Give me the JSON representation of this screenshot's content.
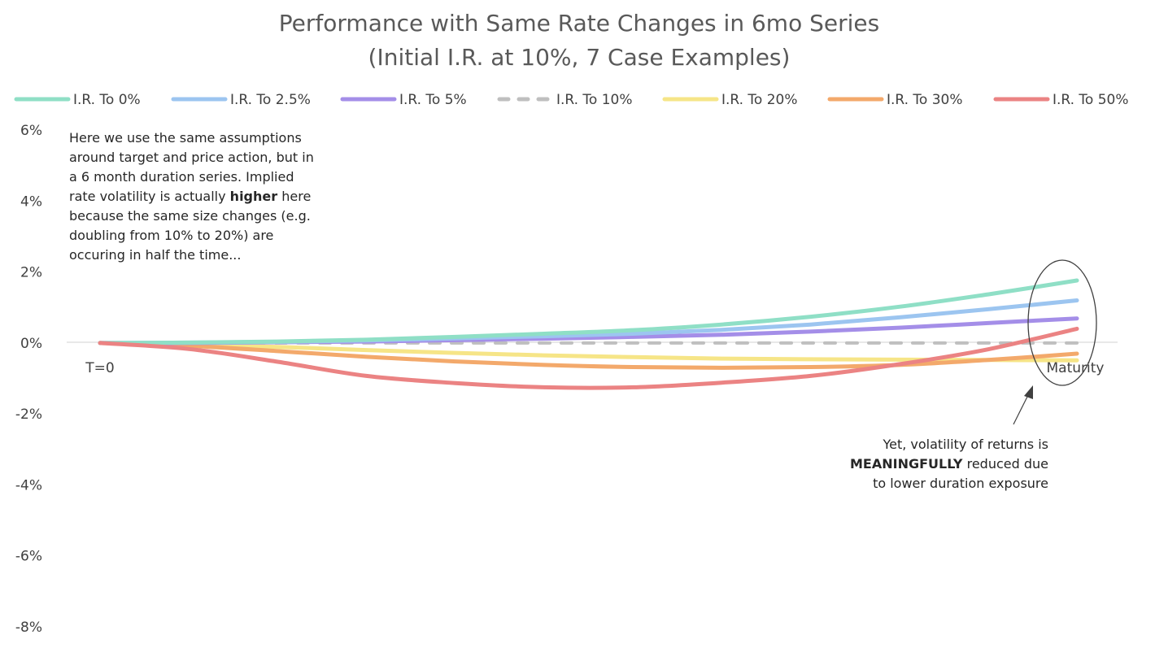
{
  "chart_data": {
    "type": "line",
    "title": "Performance with Same Rate Changes in 6mo Series",
    "subtitle": "(Initial I.R. at 10%, 7 Case Examples)",
    "xlabel": "",
    "ylabel": "",
    "ylim": [
      -0.08,
      0.06
    ],
    "ytick_values": [
      -0.08,
      -0.06,
      -0.04,
      -0.02,
      0,
      0.02,
      0.04,
      0.06
    ],
    "ytick_labels": [
      "-8%",
      "-6%",
      "-4%",
      "-2%",
      "0%",
      "2%",
      "4%",
      "6%"
    ],
    "x_start_label": "T=0",
    "x_end_label": "Maturity",
    "grid": false,
    "legend_position": "top",
    "series": [
      {
        "name": "I.R. To 0%",
        "color": "#8fdfc6",
        "dashed": false,
        "values": [
          0,
          0.0001,
          0.0004,
          0.0009,
          0.0017,
          0.0026,
          0.0036,
          0.0052,
          0.0074,
          0.0102,
          0.0137,
          0.0176
        ]
      },
      {
        "name": "I.R. To 2.5%",
        "color": "#9cc5f0",
        "dashed": false,
        "values": [
          0,
          0.0001,
          0.0003,
          0.0007,
          0.0013,
          0.0019,
          0.0026,
          0.0037,
          0.0052,
          0.0072,
          0.0095,
          0.012
        ]
      },
      {
        "name": "I.R. To 5%",
        "color": "#a48ee8",
        "dashed": false,
        "values": [
          0,
          0.0,
          0.0002,
          0.0004,
          0.0008,
          0.0012,
          0.0017,
          0.0023,
          0.0032,
          0.0043,
          0.0056,
          0.0069
        ]
      },
      {
        "name": "I.R. To 10%",
        "color": "#bfbfbf",
        "dashed": true,
        "values": [
          0,
          0,
          0,
          0,
          0,
          0,
          0,
          0,
          0,
          0,
          0,
          0
        ]
      },
      {
        "name": "I.R. To 20%",
        "color": "#f6e587",
        "dashed": false,
        "values": [
          0,
          -0.0004,
          -0.0011,
          -0.002,
          -0.0028,
          -0.0035,
          -0.004,
          -0.0044,
          -0.0046,
          -0.0047,
          -0.0048,
          -0.0049
        ]
      },
      {
        "name": "I.R. To 30%",
        "color": "#f3a96b",
        "dashed": false,
        "values": [
          0,
          -0.0008,
          -0.0023,
          -0.0039,
          -0.0052,
          -0.0062,
          -0.0068,
          -0.007,
          -0.0068,
          -0.0062,
          -0.0048,
          -0.003
        ]
      },
      {
        "name": "I.R. To 50%",
        "color": "#eb8383",
        "dashed": false,
        "values": [
          0,
          -0.0017,
          -0.0053,
          -0.0093,
          -0.0113,
          -0.0125,
          -0.0125,
          -0.0112,
          -0.0093,
          -0.006,
          -0.0018,
          0.004
        ]
      }
    ],
    "annotations": [
      {
        "id": "note-left",
        "lines": [
          [
            {
              "text": "Here we use the same assumptions",
              "bold": false
            }
          ],
          [
            {
              "text": "around target and price action, but in",
              "bold": false
            }
          ],
          [
            {
              "text": "a 6 month duration series.  Implied",
              "bold": false
            }
          ],
          [
            {
              "text": "rate volatility is actually ",
              "bold": false
            },
            {
              "text": "higher",
              "bold": true
            },
            {
              "text": " here",
              "bold": false
            }
          ],
          [
            {
              "text": "because the same size changes (e.g.",
              "bold": false
            }
          ],
          [
            {
              "text": "doubling from 10% to 20%) are",
              "bold": false
            }
          ],
          [
            {
              "text": "occuring in half the time...",
              "bold": false
            }
          ]
        ]
      },
      {
        "id": "note-right",
        "lines": [
          [
            {
              "text": "Yet, volatility of returns is",
              "bold": false
            }
          ],
          [
            {
              "text": "MEANINGFULLY",
              "bold": true
            },
            {
              "text": " reduced due",
              "bold": false
            }
          ],
          [
            {
              "text": "to lower duration exposure",
              "bold": false
            }
          ]
        ]
      }
    ]
  }
}
